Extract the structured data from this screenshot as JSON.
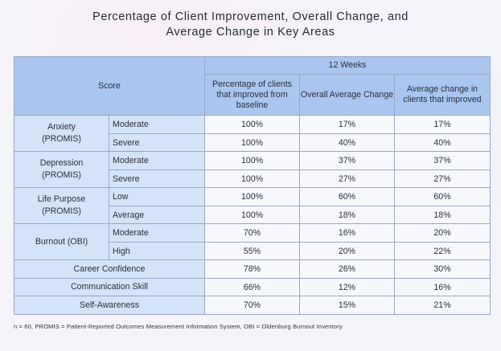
{
  "title_line1": "Percentage of Client Improvement, Overall Change, and",
  "title_line2": "Average Change in Key Areas",
  "table": {
    "period_header": "12 Weeks",
    "score_header": "Score",
    "col_headers": [
      "Percentage of clients that improved from baseline",
      "Overall Average Change",
      "Average change in clients that improved"
    ],
    "rows": [
      {
        "category": "Anxiety (PROMIS)",
        "sub": "Moderate",
        "v1": "100%",
        "v2": "17%",
        "v3": "17%"
      },
      {
        "category": "",
        "sub": "Severe",
        "v1": "100%",
        "v2": "40%",
        "v3": "40%"
      },
      {
        "category": "Depression (PROMIS)",
        "sub": "Moderate",
        "v1": "100%",
        "v2": "37%",
        "v3": "37%"
      },
      {
        "category": "",
        "sub": "Severe",
        "v1": "100%",
        "v2": "27%",
        "v3": "27%"
      },
      {
        "category": "Life Purpose (PROMIS)",
        "sub": "Low",
        "v1": "100%",
        "v2": "60%",
        "v3": "60%"
      },
      {
        "category": "",
        "sub": "Average",
        "v1": "100%",
        "v2": "18%",
        "v3": "18%"
      },
      {
        "category": "Burnout (OBI)",
        "sub": "Moderate",
        "v1": "70%",
        "v2": "16%",
        "v3": "20%"
      },
      {
        "category": "",
        "sub": "High",
        "v1": "55%",
        "v2": "20%",
        "v3": "22%"
      },
      {
        "category": "Career Confidence",
        "sub": "",
        "v1": "78%",
        "v2": "26%",
        "v3": "30%"
      },
      {
        "category": "Communication Skill",
        "sub": "",
        "v1": "66%",
        "v2": "12%",
        "v3": "16%"
      },
      {
        "category": "Self-Awareness",
        "sub": "",
        "v1": "70%",
        "v2": "15%",
        "v3": "21%"
      }
    ]
  },
  "footnote": "n = 60,  PROMIS = Patient-Reported Outcomes Measurement Information System, OBI = Oldenburg Burnout Inventory"
}
